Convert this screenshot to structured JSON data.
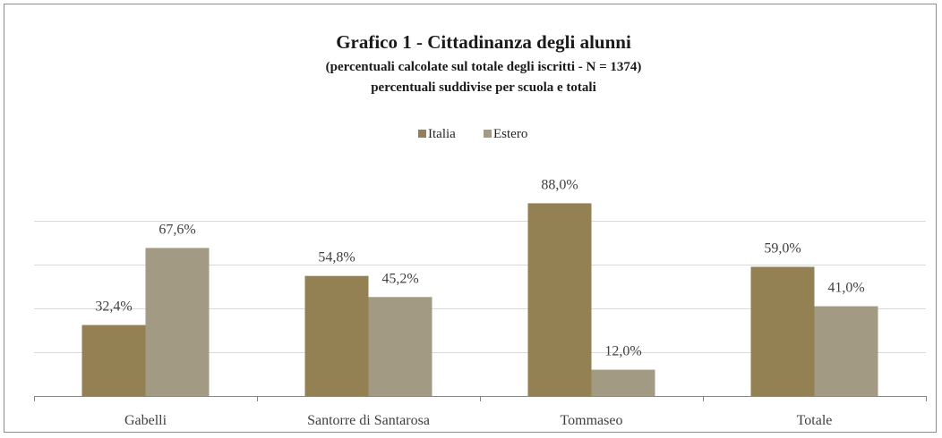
{
  "chart_data": {
    "type": "bar",
    "title": "Grafico 1 - Cittadinanza degli alunni",
    "subtitle_lines": [
      "(percentuali calcolate sul totale degli iscritti - N = 1374)",
      "percentuali suddivise per scuola e totali"
    ],
    "categories": [
      "Gabelli",
      "Santorre di Santarosa",
      "Tommaseo",
      "Totale"
    ],
    "series": [
      {
        "name": "Italia",
        "values": [
          32.4,
          54.8,
          88.0,
          59.0
        ],
        "labels": [
          "32,4%",
          "54,8%",
          "88,0%",
          "59,0%"
        ],
        "color": "#938153"
      },
      {
        "name": "Estero",
        "values": [
          67.6,
          45.2,
          12.0,
          41.0
        ],
        "labels": [
          "67,6%",
          "45,2%",
          "12,0%",
          "41,0%"
        ],
        "color": "#a39a83"
      }
    ],
    "ylim": [
      0,
      100
    ],
    "grid": true,
    "legend": "top",
    "xlabel": "",
    "ylabel": ""
  }
}
